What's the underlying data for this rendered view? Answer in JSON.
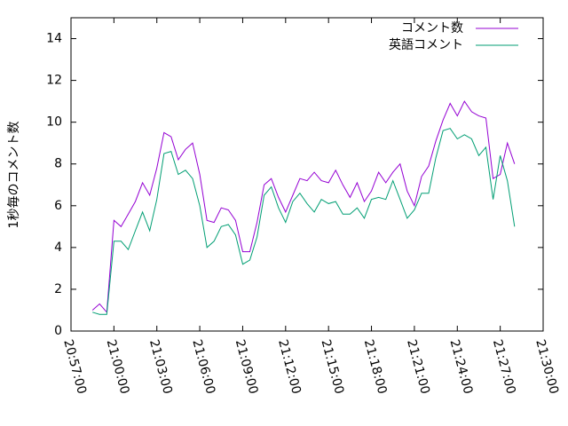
{
  "chart_data": {
    "type": "line",
    "ylabel": "1秒毎のコメント数",
    "x": [
      "20:58:30",
      "20:59:00",
      "20:59:30",
      "21:00:00",
      "21:00:30",
      "21:01:00",
      "21:01:30",
      "21:02:00",
      "21:02:30",
      "21:03:00",
      "21:03:30",
      "21:04:00",
      "21:04:30",
      "21:05:00",
      "21:05:30",
      "21:06:00",
      "21:06:30",
      "21:07:00",
      "21:07:30",
      "21:08:00",
      "21:08:30",
      "21:09:00",
      "21:09:30",
      "21:10:00",
      "21:10:30",
      "21:11:00",
      "21:11:30",
      "21:12:00",
      "21:12:30",
      "21:13:00",
      "21:13:30",
      "21:14:00",
      "21:14:30",
      "21:15:00",
      "21:15:30",
      "21:16:00",
      "21:16:30",
      "21:17:00",
      "21:17:30",
      "21:18:00",
      "21:18:30",
      "21:19:00",
      "21:19:30",
      "21:20:00",
      "21:20:30",
      "21:21:00",
      "21:21:30",
      "21:22:00",
      "21:22:30",
      "21:23:00",
      "21:23:30",
      "21:24:00",
      "21:24:30",
      "21:25:00",
      "21:25:30",
      "21:26:00",
      "21:26:30",
      "21:27:00",
      "21:27:30",
      "21:28:00"
    ],
    "series": [
      {
        "name": "コメント数",
        "color": "#9400d3",
        "values": [
          1.0,
          1.3,
          0.9,
          5.3,
          5.0,
          5.6,
          6.2,
          7.1,
          6.5,
          7.8,
          9.5,
          9.3,
          8.2,
          8.7,
          9.0,
          7.5,
          5.3,
          5.2,
          5.9,
          5.8,
          5.3,
          3.8,
          3.8,
          5.2,
          7.0,
          7.3,
          6.4,
          5.7,
          6.5,
          7.3,
          7.2,
          7.6,
          7.2,
          7.1,
          7.7,
          7.0,
          6.4,
          7.1,
          6.2,
          6.7,
          7.6,
          7.1,
          7.6,
          8.0,
          6.7,
          6.0,
          7.4,
          7.9,
          9.1,
          10.1,
          10.9,
          10.3,
          11.0,
          10.5,
          10.3,
          10.2,
          7.3,
          7.5,
          9.0,
          8.0
        ]
      },
      {
        "name": "英語コメント",
        "color": "#009e73",
        "values": [
          0.9,
          0.8,
          0.8,
          4.3,
          4.3,
          3.9,
          4.8,
          5.7,
          4.8,
          6.3,
          8.5,
          8.6,
          7.5,
          7.7,
          7.3,
          6.0,
          4.0,
          4.3,
          5.0,
          5.1,
          4.6,
          3.2,
          3.4,
          4.5,
          6.5,
          6.9,
          5.9,
          5.2,
          6.2,
          6.6,
          6.1,
          5.7,
          6.3,
          6.1,
          6.2,
          5.6,
          5.6,
          5.9,
          5.4,
          6.3,
          6.4,
          6.3,
          7.2,
          6.3,
          5.4,
          5.8,
          6.6,
          6.6,
          8.3,
          9.6,
          9.7,
          9.2,
          9.4,
          9.2,
          8.4,
          8.8,
          6.3,
          8.4,
          7.2,
          5.0
        ]
      }
    ],
    "xlim": [
      "20:57:00",
      "21:30:00"
    ],
    "xticks": [
      "20:57:00",
      "21:00:00",
      "21:03:00",
      "21:06:00",
      "21:09:00",
      "21:12:00",
      "21:15:00",
      "21:18:00",
      "21:21:00",
      "21:24:00",
      "21:27:00",
      "21:30:00"
    ],
    "ylim": [
      0,
      15
    ],
    "yticks": [
      0,
      2,
      4,
      6,
      8,
      10,
      12,
      14
    ],
    "legend": "top-right"
  }
}
